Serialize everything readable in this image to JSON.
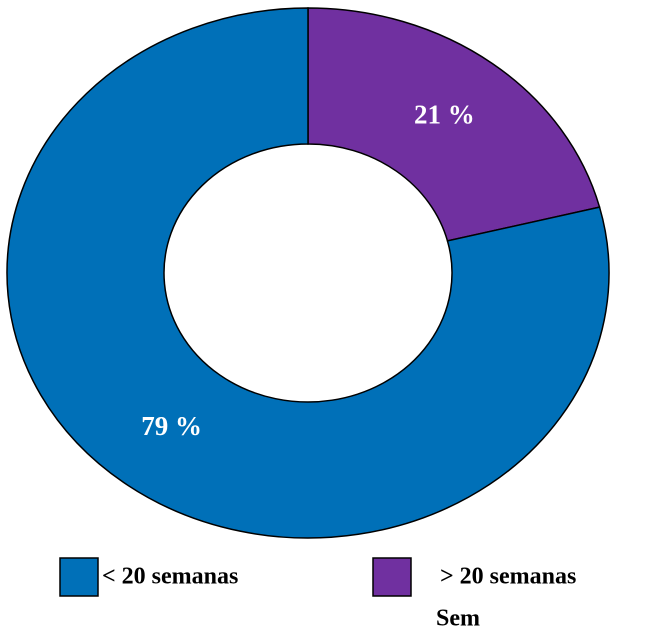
{
  "chart_data": {
    "type": "donut",
    "categories": [
      "< 20 semanas",
      "> 20 semanas"
    ],
    "values": [
      79,
      21
    ],
    "value_labels": [
      "79 %",
      "21 %"
    ],
    "colors": [
      "#0070b8",
      "#7030a0"
    ],
    "annotation": "Sem"
  }
}
